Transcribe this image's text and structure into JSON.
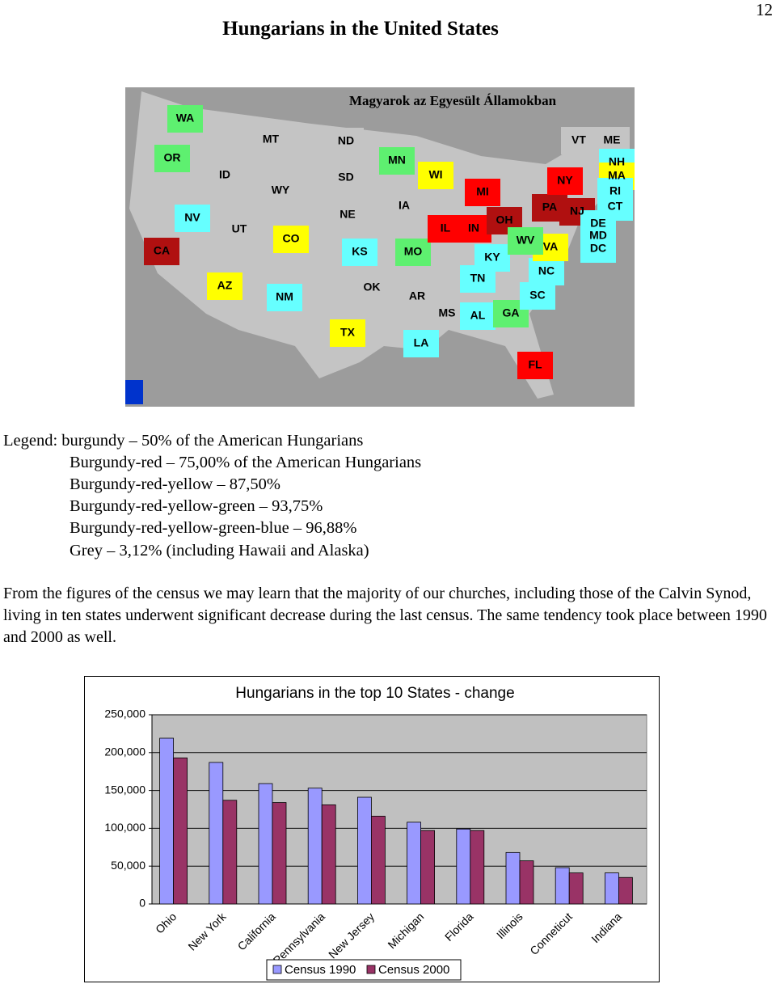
{
  "page_number": "12",
  "title": "Hungarians in the United States",
  "map": {
    "title": "Magyarok az Egyesült Államokban",
    "states": [
      {
        "label": "WA",
        "color": "#5ef070"
      },
      {
        "label": "OR",
        "color": "#5ef070"
      },
      {
        "label": "CA",
        "color": "#b01010"
      },
      {
        "label": "NV",
        "color": "#66ffff"
      },
      {
        "label": "ID",
        "color": "#c4c4c4"
      },
      {
        "label": "MT",
        "color": "#c4c4c4"
      },
      {
        "label": "WY",
        "color": "#c4c4c4"
      },
      {
        "label": "UT",
        "color": "#c4c4c4"
      },
      {
        "label": "AZ",
        "color": "#ffff00"
      },
      {
        "label": "CO",
        "color": "#ffff00"
      },
      {
        "label": "NM",
        "color": "#66ffff"
      },
      {
        "label": "ND",
        "color": "#c4c4c4"
      },
      {
        "label": "SD",
        "color": "#c4c4c4"
      },
      {
        "label": "NE",
        "color": "#c4c4c4"
      },
      {
        "label": "KS",
        "color": "#66ffff"
      },
      {
        "label": "OK",
        "color": "#c4c4c4"
      },
      {
        "label": "TX",
        "color": "#ffff00"
      },
      {
        "label": "MN",
        "color": "#5ef070"
      },
      {
        "label": "IA",
        "color": "#c4c4c4"
      },
      {
        "label": "MO",
        "color": "#5ef070"
      },
      {
        "label": "AR",
        "color": "#c4c4c4"
      },
      {
        "label": "LA",
        "color": "#66ffff"
      },
      {
        "label": "WI",
        "color": "#ffff00"
      },
      {
        "label": "IL",
        "color": "#ff0000"
      },
      {
        "label": "MI",
        "color": "#ff0000"
      },
      {
        "label": "IN",
        "color": "#ff0000"
      },
      {
        "label": "OH",
        "color": "#b01010"
      },
      {
        "label": "KY",
        "color": "#66ffff"
      },
      {
        "label": "TN",
        "color": "#66ffff"
      },
      {
        "label": "MS",
        "color": "#c4c4c4"
      },
      {
        "label": "AL",
        "color": "#66ffff"
      },
      {
        "label": "GA",
        "color": "#5ef070"
      },
      {
        "label": "FL",
        "color": "#ff0000"
      },
      {
        "label": "SC",
        "color": "#66ffff"
      },
      {
        "label": "NC",
        "color": "#66ffff"
      },
      {
        "label": "VA",
        "color": "#ffff00"
      },
      {
        "label": "WV",
        "color": "#5ef070"
      },
      {
        "label": "PA",
        "color": "#b01010"
      },
      {
        "label": "NY",
        "color": "#ff0000"
      },
      {
        "label": "VT",
        "color": "#c4c4c4"
      },
      {
        "label": "ME",
        "color": "#c4c4c4"
      },
      {
        "label": "NH",
        "color": "#66ffff"
      },
      {
        "label": "MA",
        "color": "#ffff00"
      },
      {
        "label": "RI",
        "color": "#66ffff"
      },
      {
        "label": "CT",
        "color": "#66ffff"
      },
      {
        "label": "NJ",
        "color": "#b01010"
      },
      {
        "label": "DE",
        "color": "#66ffff"
      },
      {
        "label": "MD",
        "color": "#66ffff"
      },
      {
        "label": "DC",
        "color": "#66ffff"
      }
    ]
  },
  "legend": [
    "Legend: burgundy – 50% of the American Hungarians",
    "Burgundy-red – 75,00% of the American Hungarians",
    "Burgundy-red-yellow – 87,50%",
    "Burgundy-red-yellow-green – 93,75%",
    "Burgundy-red-yellow-green-blue – 96,88%",
    "Grey – 3,12% (including Hawaii and Alaska)"
  ],
  "paragraph": "From the figures of the census we may learn that the majority of our churches, including those of the Calvin Synod, living in ten states underwent significant decrease during the last census. The same tendency took place between 1990 and 2000 as well.",
  "chart_data": {
    "type": "bar",
    "title": "Hungarians in the top 10 States - change",
    "categories": [
      "Ohio",
      "New York",
      "California",
      "Pennsylvania",
      "New Jersey",
      "Michigan",
      "Florida",
      "Illinois",
      "Conneticut",
      "Indiana"
    ],
    "series": [
      {
        "name": "Census 1990",
        "color": "#9999ff",
        "values": [
          219000,
          187000,
          159000,
          153000,
          141000,
          108000,
          99000,
          68000,
          48000,
          41000
        ]
      },
      {
        "name": "Census 2000",
        "color": "#993366",
        "values": [
          193000,
          137000,
          134000,
          131000,
          116000,
          97000,
          97000,
          57000,
          41000,
          35000
        ]
      }
    ],
    "ylim": [
      0,
      250000
    ],
    "yticks": [
      0,
      {
        "value": 50000,
        "label": "50,000"
      },
      {
        "value": 100000,
        "label": "100,000"
      },
      {
        "value": 150000,
        "label": "150,000"
      },
      {
        "value": 200000,
        "label": "200,000"
      },
      {
        "value": 250000,
        "label": "250,000"
      }
    ],
    "grid": true,
    "legend_position": "bottom"
  }
}
